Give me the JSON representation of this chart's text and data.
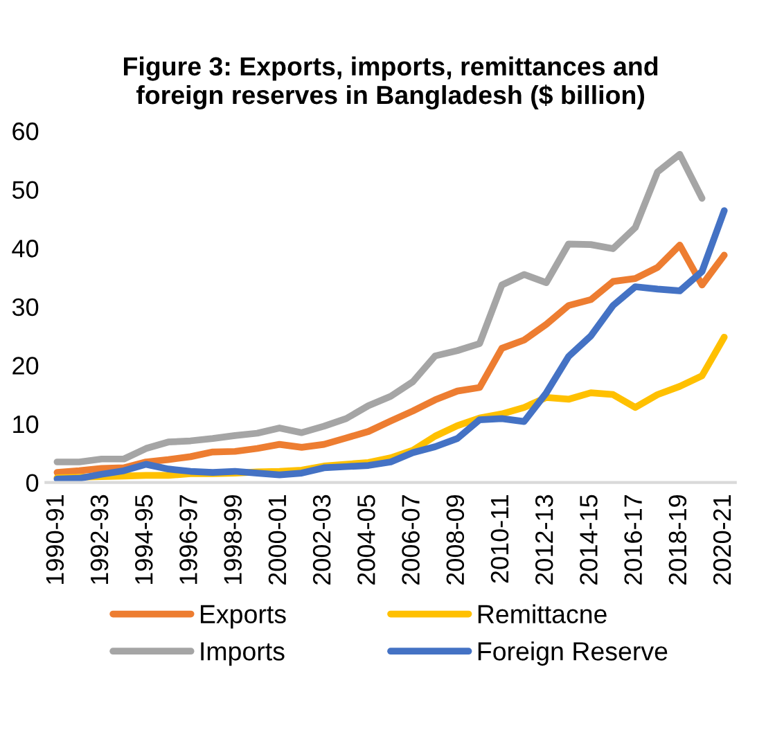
{
  "chart_data": {
    "type": "line",
    "title": "Figure 3: Exports, imports, remittances and\nforeign reserves in Bangladesh ($ billion)",
    "categories": [
      "1990-91",
      null,
      "1992-93",
      null,
      "1994-95",
      null,
      "1996-97",
      null,
      "1998-99",
      null,
      "2000-01",
      null,
      "2002-03",
      null,
      "2004-05",
      null,
      "2006-07",
      null,
      "2008-09",
      null,
      "2010-11",
      null,
      "2012-13",
      null,
      "2014-15",
      null,
      "2016-17",
      null,
      "2018-19",
      null,
      "2020-21"
    ],
    "series": [
      {
        "name": "Exports",
        "color": "#ed7d31",
        "values": [
          1.7,
          2.0,
          2.4,
          2.5,
          3.5,
          3.9,
          4.4,
          5.2,
          5.3,
          5.8,
          6.5,
          6.0,
          6.5,
          7.6,
          8.7,
          10.5,
          12.2,
          14.1,
          15.6,
          16.2,
          22.9,
          24.3,
          27.0,
          30.2,
          31.2,
          34.3,
          34.8,
          36.7,
          40.5,
          33.7,
          38.8
        ]
      },
      {
        "name": "Imports",
        "color": "#a5a5a5",
        "values": [
          3.5,
          3.5,
          4.0,
          4.0,
          5.8,
          6.9,
          7.1,
          7.5,
          8.0,
          8.4,
          9.3,
          8.5,
          9.6,
          10.9,
          13.1,
          14.7,
          17.2,
          21.6,
          22.5,
          23.7,
          33.7,
          35.5,
          34.1,
          40.7,
          40.6,
          39.9,
          43.5,
          53.0,
          56.0,
          48.5,
          null
        ]
      },
      {
        "name": "Remittacne",
        "color": "#ffc000",
        "values": [
          0.8,
          0.9,
          1.0,
          1.1,
          1.2,
          1.2,
          1.5,
          1.5,
          1.6,
          1.8,
          1.9,
          2.1,
          2.8,
          3.1,
          3.4,
          4.2,
          5.5,
          7.9,
          9.7,
          11.0,
          11.7,
          12.8,
          14.5,
          14.2,
          15.3,
          15.0,
          12.8,
          15.0,
          16.4,
          18.2,
          24.8
        ]
      },
      {
        "name": "Foreign Reserve",
        "color": "#4472c4",
        "values": [
          0.6,
          0.7,
          1.4,
          2.0,
          3.1,
          2.3,
          1.9,
          1.7,
          1.9,
          1.6,
          1.3,
          1.6,
          2.5,
          2.7,
          2.9,
          3.5,
          5.1,
          6.1,
          7.5,
          10.7,
          10.9,
          10.4,
          15.3,
          21.5,
          25.0,
          30.2,
          33.4,
          33.0,
          32.7,
          36.0,
          46.4
        ]
      }
    ],
    "ylim": [
      0,
      60
    ],
    "yticks": [
      0,
      10,
      20,
      30,
      40,
      50,
      60
    ],
    "grid": false,
    "legend": "bottom",
    "marker": "none",
    "line_style": "solid"
  }
}
